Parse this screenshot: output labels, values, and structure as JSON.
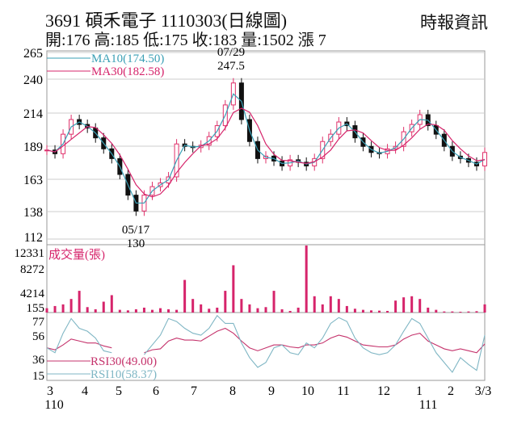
{
  "header": {
    "title": "3691  碩禾電子 1110303(日線圖)",
    "quote": "開:176 高:185 低:175 收:183 量:1502 漲 7",
    "source": "時報資訊"
  },
  "colors": {
    "up": "#e0306a",
    "down": "#111111",
    "ma10": "#3a9fb5",
    "ma30": "#d6246b",
    "volume": "#d6246b",
    "rsi10": "#7fb6c4",
    "rsi30": "#c5336c",
    "grid": "#cccccc"
  },
  "chart_data": [
    {
      "type": "candlestick",
      "panel": "price",
      "legend": [
        {
          "label": "MA10(174.50)",
          "color": "#3a9fb5"
        },
        {
          "label": "MA30(182.58)",
          "color": "#d6246b"
        }
      ],
      "y_ticks": [
        "265",
        "240",
        "214",
        "189",
        "163",
        "138",
        "112"
      ],
      "ylim": [
        112,
        265
      ],
      "annotations": [
        {
          "label_date": "07/29",
          "label_value": "247.5"
        },
        {
          "label_date": "05/17",
          "label_value": "130"
        }
      ],
      "close": [
        185,
        182,
        198,
        210,
        206,
        203,
        195,
        186,
        178,
        165,
        148,
        135,
        148,
        155,
        158,
        163,
        190,
        188,
        187,
        189,
        196,
        205,
        222,
        240,
        210,
        192,
        178,
        180,
        176,
        172,
        177,
        175,
        172,
        178,
        192,
        198,
        208,
        205,
        195,
        188,
        183,
        182,
        186,
        188,
        200,
        206,
        214,
        205,
        198,
        188,
        180,
        178,
        175,
        172,
        183
      ]
    },
    {
      "type": "bar",
      "panel": "volume",
      "title": "成交量(張)",
      "y_ticks": [
        "12331",
        "8272",
        "4214",
        "155"
      ],
      "ylim": [
        0,
        12331
      ],
      "values": [
        800,
        1200,
        1500,
        2500,
        4000,
        1000,
        600,
        2000,
        3200,
        500,
        400,
        600,
        900,
        500,
        800,
        600,
        500,
        6000,
        2500,
        1500,
        700,
        900,
        4000,
        8700,
        2500,
        1500,
        800,
        1000,
        4000,
        600,
        300,
        900,
        12331,
        3000,
        1500,
        3000,
        2500,
        1200,
        700,
        500,
        400,
        350,
        300,
        2200,
        2800,
        3000,
        2500,
        900,
        500,
        200,
        200,
        150,
        200,
        250,
        1502
      ]
    },
    {
      "type": "line",
      "panel": "rsi",
      "y_ticks": [
        "77",
        "56",
        "36",
        "15"
      ],
      "ylim": [
        15,
        77
      ],
      "series": [
        {
          "name": "RSI30(49.00)",
          "color": "#c5336c",
          "values": [
            45,
            43,
            48,
            54,
            52,
            50,
            50,
            47,
            45,
            null,
            null,
            null,
            40,
            43,
            44,
            52,
            55,
            53,
            53,
            52,
            57,
            62,
            65,
            60,
            52,
            45,
            42,
            45,
            48,
            48,
            46,
            45,
            48,
            48,
            50,
            55,
            58,
            56,
            52,
            48,
            47,
            46,
            46,
            48,
            54,
            58,
            60,
            52,
            48,
            44,
            42,
            44,
            42,
            40,
            49
          ]
        },
        {
          "name": "RSI10(58.37)",
          "color": "#7fb6c4",
          "values": [
            45,
            40,
            60,
            75,
            65,
            62,
            55,
            42,
            40,
            null,
            null,
            null,
            38,
            48,
            58,
            75,
            72,
            65,
            60,
            58,
            65,
            78,
            70,
            70,
            50,
            35,
            25,
            30,
            45,
            48,
            40,
            38,
            50,
            45,
            55,
            70,
            76,
            72,
            55,
            45,
            40,
            38,
            40,
            48,
            62,
            75,
            70,
            55,
            40,
            30,
            20,
            35,
            28,
            22,
            58
          ]
        }
      ]
    },
    {
      "type": "axis",
      "x_ticks": [
        "3",
        "4",
        "5",
        "6",
        "7",
        "8",
        "9",
        "10",
        "11",
        "12",
        "1",
        "2",
        "3/3"
      ],
      "year_labels": [
        "110",
        "111"
      ]
    }
  ]
}
